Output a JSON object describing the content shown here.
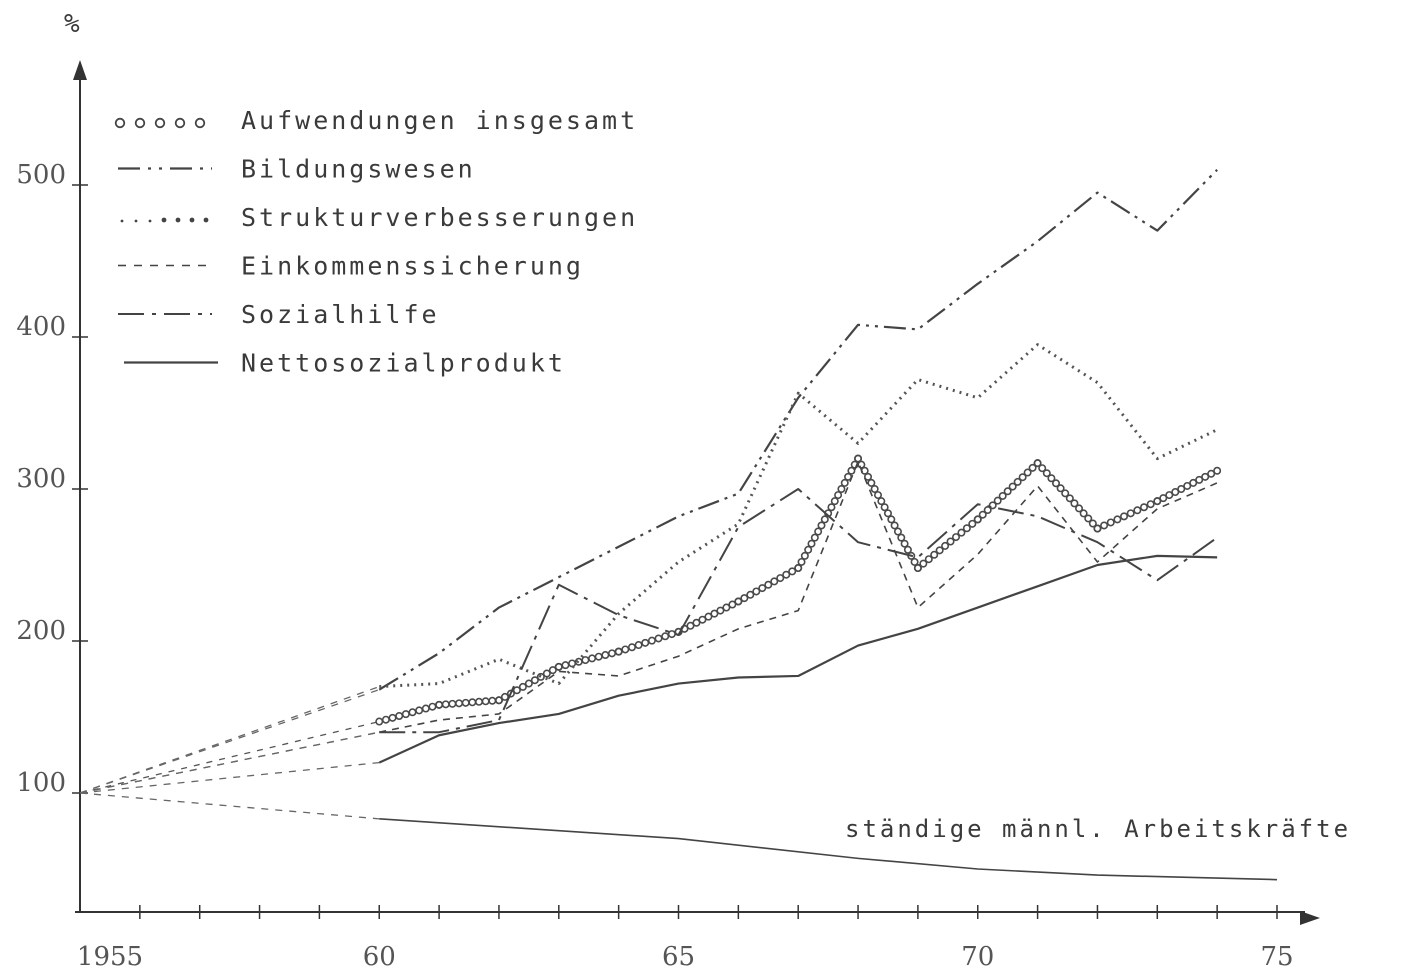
{
  "chart_data": {
    "type": "line",
    "ylabel": "%",
    "xlabel": "",
    "x_ticks": [
      1955,
      60,
      65,
      70,
      75
    ],
    "y_ticks": [
      100,
      200,
      300,
      400,
      500
    ],
    "xlim": [
      1955,
      1975
    ],
    "ylim": [
      0,
      560
    ],
    "grid": false,
    "legend_position": "top-left",
    "series": [
      {
        "name": "Aufwendungen insgesamt",
        "style": "circles",
        "x": [
          1955,
          1960,
          1961,
          1962,
          1963,
          1964,
          1965,
          1966,
          1967,
          1968,
          1969,
          1970,
          1971,
          1972,
          1973,
          1974
        ],
        "values": [
          100,
          147,
          158,
          161,
          183,
          193,
          206,
          226,
          248,
          320,
          248,
          280,
          317,
          274,
          292,
          312
        ]
      },
      {
        "name": "Bildungswesen",
        "style": "dash-dot-dot",
        "x": [
          1955,
          1960,
          1961,
          1962,
          1963,
          1964,
          1965,
          1966,
          1967,
          1968,
          1969,
          1970,
          1971,
          1972,
          1973,
          1974
        ],
        "values": [
          100,
          168,
          192,
          222,
          242,
          262,
          282,
          297,
          360,
          408,
          405,
          435,
          463,
          495,
          470,
          510
        ]
      },
      {
        "name": "Strukturverbesserungen",
        "style": "dotted",
        "x": [
          1955,
          1960,
          1961,
          1962,
          1963,
          1964,
          1965,
          1966,
          1967,
          1968,
          1969,
          1970,
          1971,
          1972,
          1973,
          1974
        ],
        "values": [
          100,
          170,
          172,
          188,
          172,
          218,
          252,
          277,
          363,
          330,
          372,
          360,
          395,
          370,
          320,
          339
        ]
      },
      {
        "name": "Einkommenssicherung",
        "style": "short-dash",
        "x": [
          1955,
          1960,
          1961,
          1962,
          1963,
          1964,
          1965,
          1966,
          1967,
          1968,
          1969,
          1970,
          1971,
          1972,
          1973,
          1974
        ],
        "values": [
          100,
          140,
          148,
          152,
          180,
          177,
          190,
          208,
          220,
          318,
          222,
          257,
          302,
          252,
          287,
          304
        ]
      },
      {
        "name": "Sozialhilfe",
        "style": "long-dash-dot",
        "x": [
          1955,
          1960,
          1961,
          1962,
          1963,
          1964,
          1965,
          1966,
          1967,
          1968,
          1969,
          1970,
          1971,
          1972,
          1973,
          1974
        ],
        "values": [
          100,
          140,
          140,
          148,
          237,
          217,
          204,
          275,
          300,
          265,
          255,
          290,
          282,
          265,
          240,
          268
        ]
      },
      {
        "name": "Nettosozialprodukt",
        "style": "solid",
        "x": [
          1955,
          1960,
          1961,
          1962,
          1963,
          1964,
          1965,
          1966,
          1967,
          1968,
          1969,
          1970,
          1971,
          1972,
          1973,
          1974
        ],
        "values": [
          100,
          120,
          138,
          146,
          152,
          164,
          172,
          176,
          177,
          197,
          208,
          222,
          236,
          250,
          256,
          255
        ]
      },
      {
        "name": "ständige männl. Arbeitskräfte",
        "style": "solid-thin",
        "x": [
          1955,
          1960,
          1965,
          1968,
          1970,
          1972,
          1975
        ],
        "values": [
          100,
          83,
          70,
          57,
          50,
          46,
          43
        ]
      }
    ],
    "annotations": [
      "ständige männl. Arbeitskräfte"
    ],
    "x_tick_labels": [
      "1955",
      "60",
      "65",
      "70",
      "75"
    ],
    "y_tick_labels": [
      "100",
      "200",
      "300",
      "400",
      "500"
    ]
  }
}
